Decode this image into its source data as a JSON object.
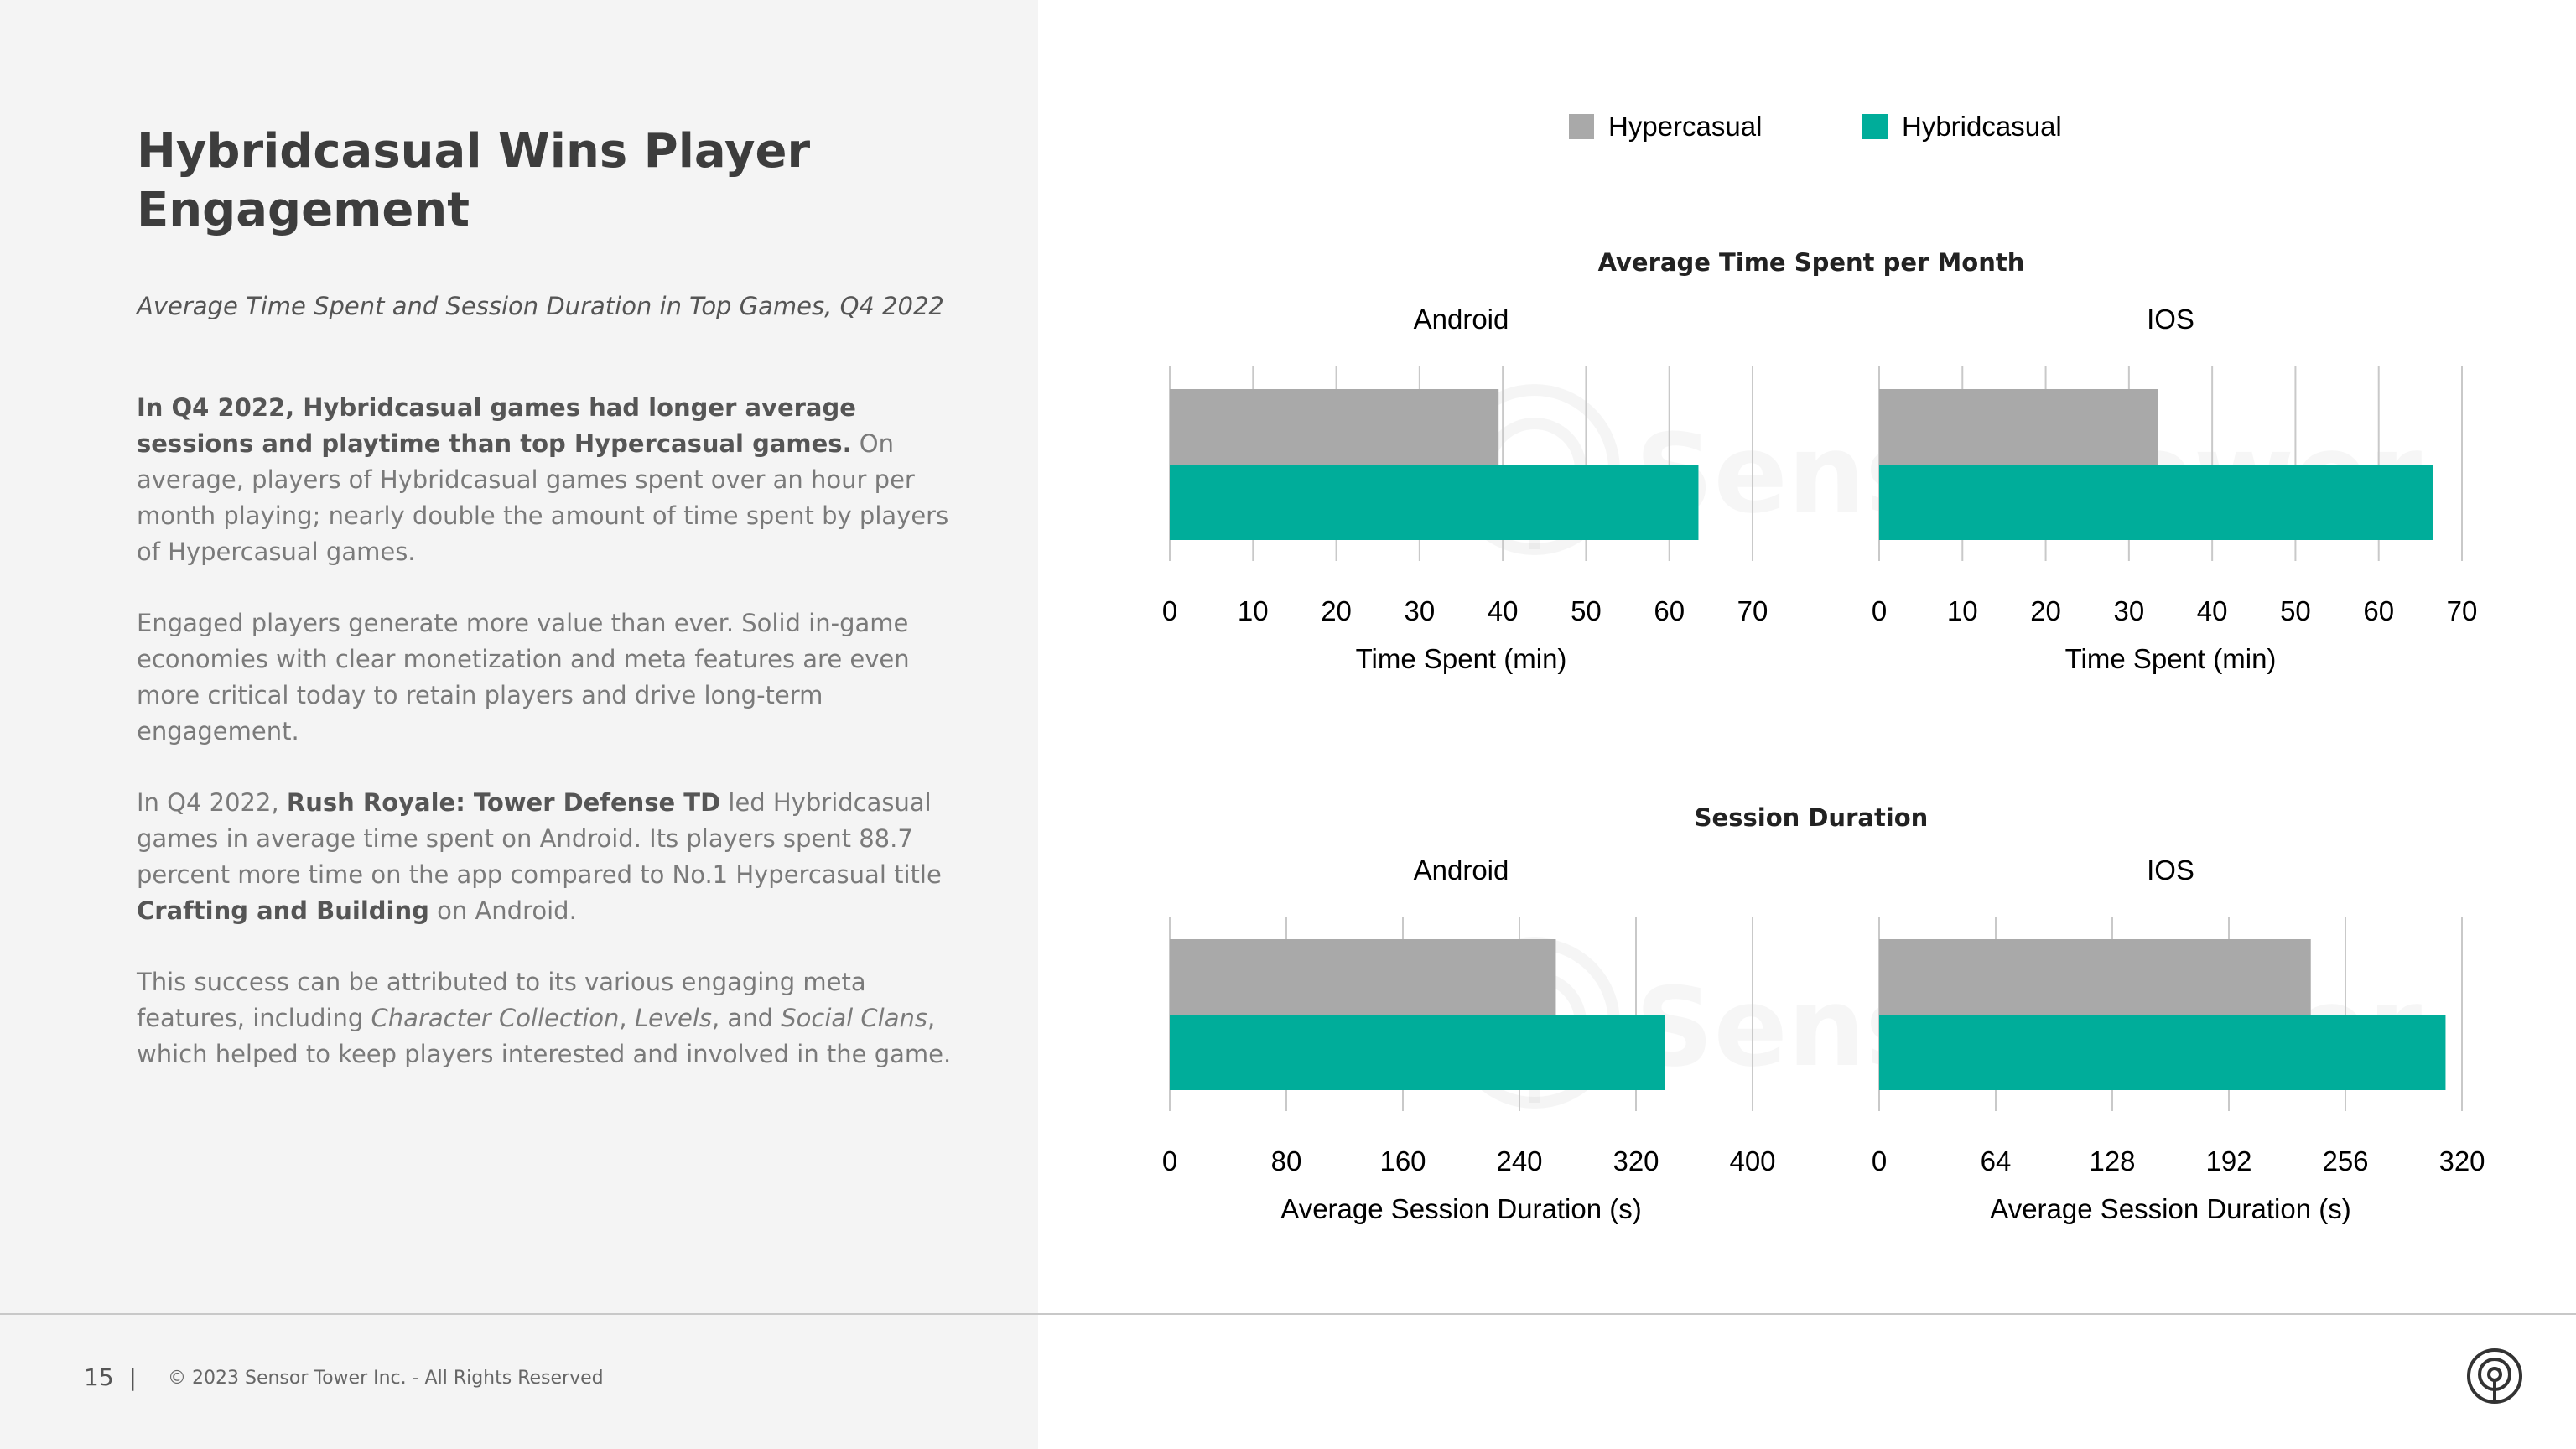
{
  "page": {
    "title": "Hybridcasual Wins Player Engagement",
    "subtitle": "Average Time Spent and Session Duration in Top Games, Q4 2022",
    "paragraphs": {
      "p1_bold": "In Q4 2022, Hybridcasual games had longer average sessions and playtime than top Hypercasual games.",
      "p1_rest": " On average, players of Hybridcasual games spent over an hour per month playing; nearly double the amount of time spent by players of Hypercasual games.",
      "p2": "Engaged players generate more value than ever. Solid in-game economies with clear monetization and meta features are even more critical today to retain players and drive long-term engagement.",
      "p3_a": "In Q4 2022, ",
      "p3_b": "Rush Royale: Tower Defense TD",
      "p3_c": " led Hybridcasual games in average time spent on Android. Its players spent 88.7 percent more time on the app compared to No.1 Hypercasual title ",
      "p3_d": "Crafting and Building",
      "p3_e": " on Android.",
      "p4_a": "This success can be attributed to its various engaging meta features, including ",
      "p4_b": "Character Collection",
      "p4_c": ", ",
      "p4_d": "Levels",
      "p4_e": ", and ",
      "p4_f": "Social Clans",
      "p4_g": ", which helped to keep players interested and involved in the game."
    },
    "footer": {
      "page_number": "15",
      "separator": "|",
      "copyright": "© 2023 Sensor Tower Inc. - All Rights Reserved"
    },
    "watermark": "SensorTower",
    "icons": [
      "sensor-tower-logo-icon"
    ]
  },
  "chart_data": [
    {
      "type": "bar",
      "orientation": "horizontal",
      "group_title": "Average Time Spent per Month",
      "title": "Android",
      "xlabel": "Time Spent (min)",
      "xlim": [
        0,
        70
      ],
      "ticks": [
        0,
        10,
        20,
        30,
        40,
        50,
        60,
        70
      ],
      "series": [
        {
          "name": "Hypercasual",
          "color": "#a9a9a9",
          "values": [
            39.5
          ]
        },
        {
          "name": "Hybridcasual",
          "color": "#00ad9a",
          "values": [
            63.5
          ]
        }
      ],
      "legend": "top"
    },
    {
      "type": "bar",
      "orientation": "horizontal",
      "group_title": "Average Time Spent per Month",
      "title": "IOS",
      "xlabel": "Time Spent (min)",
      "xlim": [
        0,
        70
      ],
      "ticks": [
        0,
        10,
        20,
        30,
        40,
        50,
        60,
        70
      ],
      "series": [
        {
          "name": "Hypercasual",
          "color": "#a9a9a9",
          "values": [
            33.5
          ]
        },
        {
          "name": "Hybridcasual",
          "color": "#00ad9a",
          "values": [
            66.5
          ]
        }
      ],
      "legend": "top"
    },
    {
      "type": "bar",
      "orientation": "horizontal",
      "group_title": "Session Duration",
      "title": "Android",
      "xlabel": "Average Session Duration (s)",
      "xlim": [
        0,
        400
      ],
      "ticks": [
        0,
        80,
        160,
        240,
        320,
        400
      ],
      "series": [
        {
          "name": "Hypercasual",
          "color": "#a9a9a9",
          "values": [
            265
          ]
        },
        {
          "name": "Hybridcasual",
          "color": "#00ad9a",
          "values": [
            340
          ]
        }
      ],
      "legend": "top"
    },
    {
      "type": "bar",
      "orientation": "horizontal",
      "group_title": "Session Duration",
      "title": "IOS",
      "xlabel": "Average Session Duration (s)",
      "xlim": [
        0,
        320
      ],
      "ticks": [
        0,
        64,
        128,
        192,
        256,
        320
      ],
      "series": [
        {
          "name": "Hypercasual",
          "color": "#a9a9a9",
          "values": [
            237
          ]
        },
        {
          "name": "Hybridcasual",
          "color": "#00ad9a",
          "values": [
            311
          ]
        }
      ],
      "legend": "top"
    }
  ]
}
